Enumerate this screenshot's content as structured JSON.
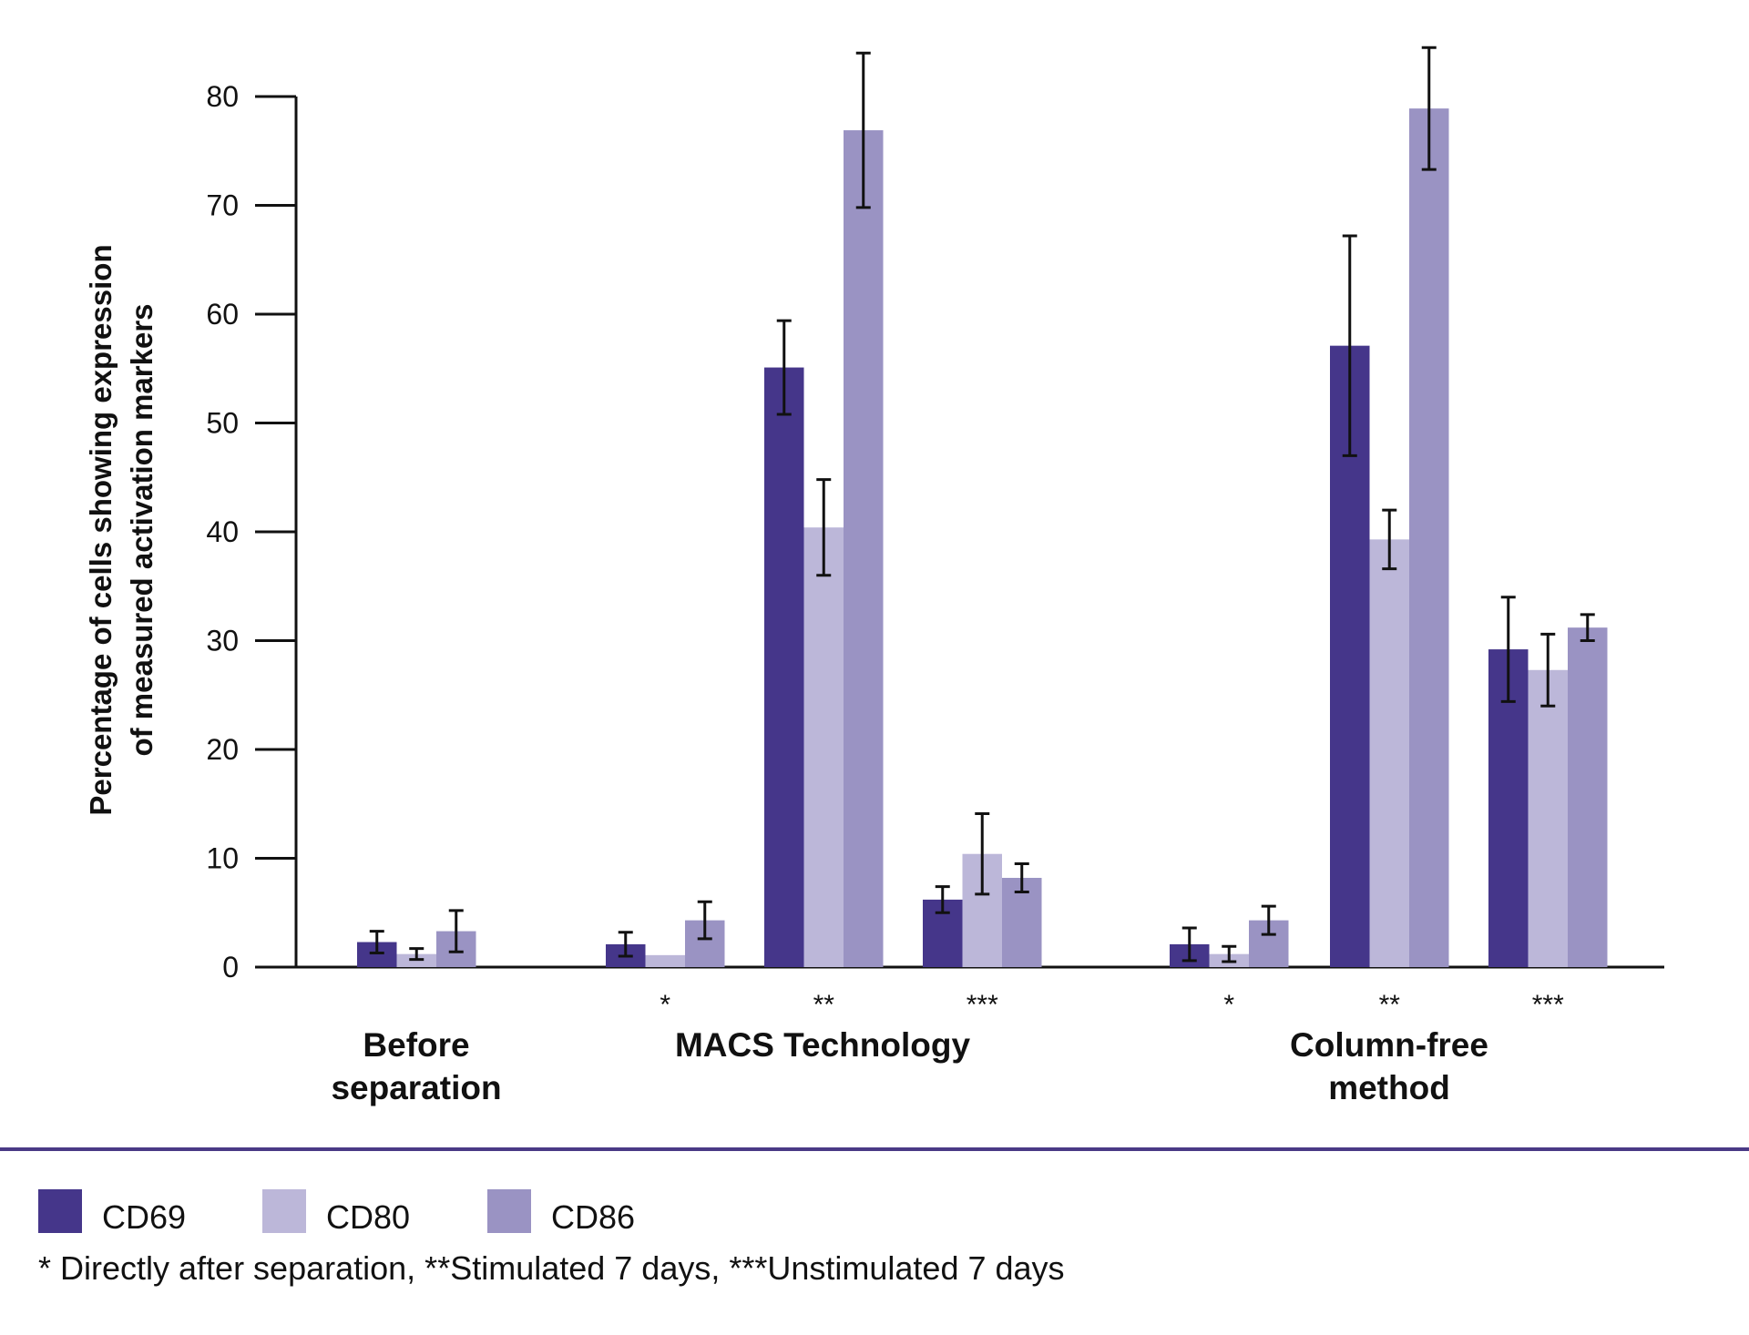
{
  "chart_data": {
    "type": "bar",
    "title": "",
    "xlabel": "",
    "ylabel": "Percentage of cells showing expression of measured activation markers",
    "ylabel_lines": [
      "Percentage of cells showing expression",
      "of measured activation markers"
    ],
    "ylim": [
      0,
      80
    ],
    "yticks": [
      0,
      10,
      20,
      30,
      40,
      50,
      60,
      70,
      80
    ],
    "series_names": [
      "CD69",
      "CD80",
      "CD86"
    ],
    "colors": {
      "CD69": "#45368a",
      "CD80": "#bcb7d9",
      "CD86": "#9a93c3"
    },
    "groups": [
      {
        "label_lines": [
          "Before",
          "separation"
        ],
        "clusters": [
          {
            "condition_marker": "",
            "values": [
              2.3,
              1.2,
              3.3
            ],
            "errors": [
              1.0,
              0.5,
              1.9
            ]
          }
        ]
      },
      {
        "label_lines": [
          "MACS Technology"
        ],
        "clusters": [
          {
            "condition_marker": "*",
            "values": [
              2.1,
              1.1,
              4.3
            ],
            "errors": [
              1.1,
              0,
              1.7
            ]
          },
          {
            "condition_marker": "**",
            "values": [
              55.1,
              40.4,
              76.9
            ],
            "errors": [
              4.3,
              4.4,
              7.1
            ]
          },
          {
            "condition_marker": "***",
            "values": [
              6.2,
              10.4,
              8.2
            ],
            "errors": [
              1.2,
              3.7,
              1.3
            ]
          }
        ]
      },
      {
        "label_lines": [
          "Column-free",
          "method"
        ],
        "clusters": [
          {
            "condition_marker": "*",
            "values": [
              2.1,
              1.2,
              4.3
            ],
            "errors": [
              1.5,
              0.7,
              1.3
            ]
          },
          {
            "condition_marker": "**",
            "values": [
              57.1,
              39.3,
              78.9
            ],
            "errors": [
              10.1,
              2.7,
              5.6
            ]
          },
          {
            "condition_marker": "***",
            "values": [
              29.2,
              27.3,
              31.2
            ],
            "errors": [
              4.8,
              3.3,
              1.2
            ]
          }
        ]
      }
    ]
  },
  "legend": {
    "items": [
      {
        "label": "CD69",
        "color": "#45368a"
      },
      {
        "label": "CD80",
        "color": "#bcb7d9"
      },
      {
        "label": "CD86",
        "color": "#9a93c3"
      }
    ]
  },
  "footnote": "* Directly after separation, **Stimulated 7 days, ***Unstimulated 7 days",
  "divider_color": "#4a3a86"
}
